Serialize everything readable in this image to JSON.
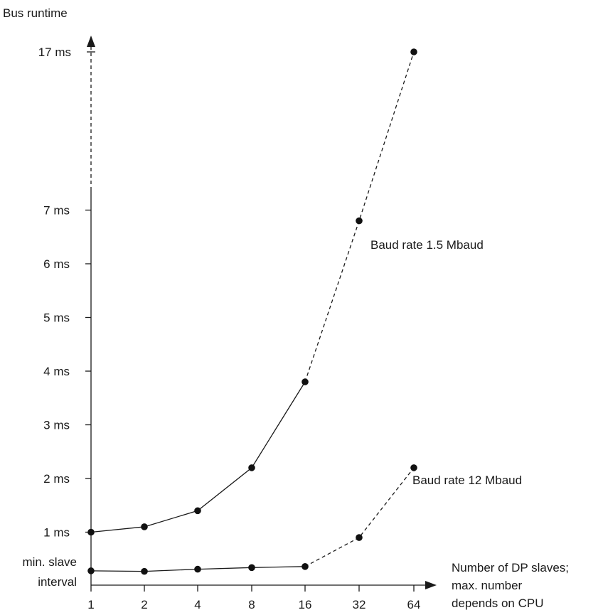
{
  "chart_data": {
    "type": "line",
    "ylabel": "Bus runtime",
    "xlabel_lines": [
      "Number of DP slaves;",
      "max. number",
      "depends on CPU"
    ],
    "x_ticks": [
      "1",
      "2",
      "4",
      "8",
      "16",
      "32",
      "64"
    ],
    "y_ticks": [
      "1 ms",
      "2 ms",
      "3 ms",
      "4 ms",
      "5 ms",
      "6 ms",
      "7 ms"
    ],
    "y_top_tick": "17 ms",
    "y_min_label_lines": [
      "min. slave",
      "interval"
    ],
    "axis_break": true,
    "series": [
      {
        "name": "Baud rate 1.5 Mbaud",
        "x": [
          1,
          2,
          4,
          8,
          16,
          32,
          64
        ],
        "y": [
          1.0,
          1.1,
          1.4,
          2.2,
          3.8,
          6.8,
          17
        ],
        "solid_through": 16,
        "dashed_after": 16
      },
      {
        "name": "Baud rate 12 Mbaud",
        "x": [
          1,
          2,
          4,
          8,
          16,
          32,
          64
        ],
        "y": [
          0.28,
          0.27,
          0.31,
          0.34,
          0.36,
          0.9,
          2.2
        ],
        "solid_through": 16,
        "dashed_after": 16
      }
    ],
    "colors": {
      "line": "#1a1a1a",
      "marker": "#111111"
    }
  }
}
